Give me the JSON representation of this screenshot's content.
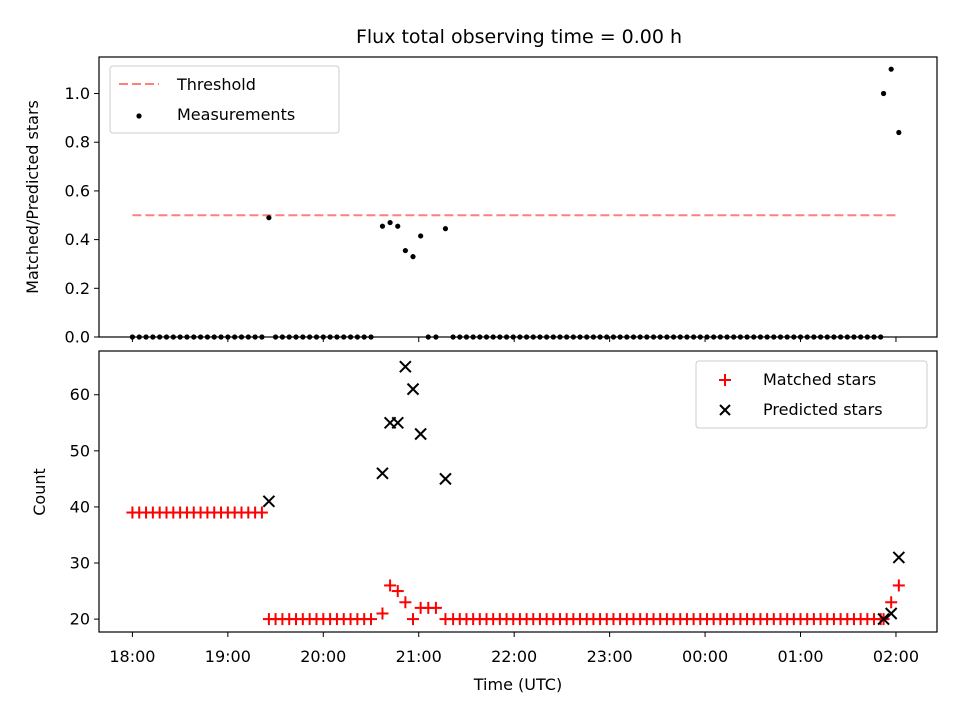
{
  "figure_title": "Flux total observing time = 0.00 h",
  "xlabel": "Time (UTC)",
  "x_ticks": [
    "18:00",
    "19:00",
    "20:00",
    "21:00",
    "22:00",
    "23:00",
    "00:00",
    "01:00",
    "02:00"
  ],
  "chart_data": [
    {
      "type": "scatter",
      "panel": "top",
      "title": "Flux total observing time = 0.00 h",
      "ylabel": "Matched/Predicted stars",
      "xlabel": "Time (UTC)",
      "x_unit": "hours since 18:00 UTC",
      "xlim": [
        -0.35,
        8.43
      ],
      "ylim": [
        0.0,
        1.15
      ],
      "y_ticks": [
        "0.0",
        "0.2",
        "0.4",
        "0.6",
        "0.8",
        "1.0"
      ],
      "legend": {
        "position": "top-left",
        "entries": [
          "Threshold",
          "Measurements"
        ]
      },
      "threshold": {
        "name": "Threshold",
        "value": 0.5,
        "x_range": [
          0.0,
          8.0
        ],
        "color": "#ff7f7f",
        "style": "dashed"
      },
      "series": [
        {
          "name": "Measurements",
          "color": "#000000",
          "marker": "dot",
          "points": [
            [
              0.0,
              0
            ],
            [
              0.0714,
              0
            ],
            [
              0.1429,
              0
            ],
            [
              0.2143,
              0
            ],
            [
              0.2857,
              0
            ],
            [
              0.3571,
              0
            ],
            [
              0.4286,
              0
            ],
            [
              0.5,
              0
            ],
            [
              0.5714,
              0
            ],
            [
              0.6429,
              0
            ],
            [
              0.7143,
              0
            ],
            [
              0.7857,
              0
            ],
            [
              0.8571,
              0
            ],
            [
              0.9286,
              0
            ],
            [
              1.0,
              0
            ],
            [
              1.0714,
              0
            ],
            [
              1.1429,
              0
            ],
            [
              1.2143,
              0
            ],
            [
              1.2857,
              0
            ],
            [
              1.3571,
              0
            ],
            [
              1.43,
              0.49
            ],
            [
              1.5,
              0
            ],
            [
              1.5714,
              0
            ],
            [
              1.6429,
              0
            ],
            [
              1.7143,
              0
            ],
            [
              1.7857,
              0
            ],
            [
              1.8571,
              0
            ],
            [
              1.9286,
              0
            ],
            [
              2.0,
              0
            ],
            [
              2.0714,
              0
            ],
            [
              2.1429,
              0
            ],
            [
              2.2143,
              0
            ],
            [
              2.2857,
              0
            ],
            [
              2.3571,
              0
            ],
            [
              2.4286,
              0
            ],
            [
              2.5,
              0
            ],
            [
              2.62,
              0.455
            ],
            [
              2.7,
              0.47
            ],
            [
              2.78,
              0.455
            ],
            [
              2.86,
              0.355
            ],
            [
              2.94,
              0.33
            ],
            [
              3.02,
              0.415
            ],
            [
              3.1,
              0
            ],
            [
              3.18,
              0
            ],
            [
              3.28,
              0.445
            ],
            [
              3.36,
              0
            ],
            [
              3.43,
              0
            ],
            [
              3.5,
              0
            ],
            [
              3.57,
              0
            ],
            [
              3.64,
              0
            ],
            [
              3.71,
              0
            ],
            [
              3.78,
              0
            ],
            [
              3.85,
              0
            ],
            [
              3.92,
              0
            ],
            [
              3.99,
              0
            ],
            [
              4.06,
              0
            ],
            [
              4.13,
              0
            ],
            [
              4.2,
              0
            ],
            [
              4.27,
              0
            ],
            [
              4.34,
              0
            ],
            [
              4.41,
              0
            ],
            [
              4.48,
              0
            ],
            [
              4.55,
              0
            ],
            [
              4.62,
              0
            ],
            [
              4.69,
              0
            ],
            [
              4.76,
              0
            ],
            [
              4.83,
              0
            ],
            [
              4.9,
              0
            ],
            [
              4.97,
              0
            ],
            [
              5.04,
              0
            ],
            [
              5.11,
              0
            ],
            [
              5.18,
              0
            ],
            [
              5.25,
              0
            ],
            [
              5.32,
              0
            ],
            [
              5.39,
              0
            ],
            [
              5.46,
              0
            ],
            [
              5.53,
              0
            ],
            [
              5.6,
              0
            ],
            [
              5.67,
              0
            ],
            [
              5.74,
              0
            ],
            [
              5.81,
              0
            ],
            [
              5.88,
              0
            ],
            [
              5.95,
              0
            ],
            [
              6.02,
              0
            ],
            [
              6.09,
              0
            ],
            [
              6.16,
              0
            ],
            [
              6.23,
              0
            ],
            [
              6.3,
              0
            ],
            [
              6.37,
              0
            ],
            [
              6.44,
              0
            ],
            [
              6.51,
              0
            ],
            [
              6.58,
              0
            ],
            [
              6.65,
              0
            ],
            [
              6.72,
              0
            ],
            [
              6.79,
              0
            ],
            [
              6.86,
              0
            ],
            [
              6.93,
              0
            ],
            [
              7.0,
              0
            ],
            [
              7.07,
              0
            ],
            [
              7.14,
              0
            ],
            [
              7.21,
              0
            ],
            [
              7.28,
              0
            ],
            [
              7.35,
              0
            ],
            [
              7.42,
              0
            ],
            [
              7.49,
              0
            ],
            [
              7.56,
              0
            ],
            [
              7.63,
              0
            ],
            [
              7.7,
              0
            ],
            [
              7.77,
              0
            ],
            [
              7.84,
              0
            ],
            [
              7.87,
              1.0
            ],
            [
              7.95,
              1.1
            ],
            [
              8.03,
              0.84
            ]
          ]
        }
      ]
    },
    {
      "type": "scatter",
      "panel": "bottom",
      "ylabel": "Count",
      "xlabel": "Time (UTC)",
      "x_unit": "hours since 18:00 UTC",
      "xlim": [
        -0.35,
        8.43
      ],
      "ylim": [
        17.7,
        67.8
      ],
      "y_ticks": [
        "20",
        "30",
        "40",
        "50",
        "60"
      ],
      "legend": {
        "position": "top-right",
        "entries": [
          "Matched stars",
          "Predicted stars"
        ]
      },
      "series": [
        {
          "name": "Matched stars",
          "color": "#ff0000",
          "marker": "plus",
          "points": [
            [
              0.0,
              39
            ],
            [
              0.0714,
              39
            ],
            [
              0.1429,
              39
            ],
            [
              0.2143,
              39
            ],
            [
              0.2857,
              39
            ],
            [
              0.3571,
              39
            ],
            [
              0.4286,
              39
            ],
            [
              0.5,
              39
            ],
            [
              0.5714,
              39
            ],
            [
              0.6429,
              39
            ],
            [
              0.7143,
              39
            ],
            [
              0.7857,
              39
            ],
            [
              0.8571,
              39
            ],
            [
              0.9286,
              39
            ],
            [
              1.0,
              39
            ],
            [
              1.0714,
              39
            ],
            [
              1.1429,
              39
            ],
            [
              1.2143,
              39
            ],
            [
              1.2857,
              39
            ],
            [
              1.3571,
              39
            ],
            [
              1.43,
              20
            ],
            [
              1.5,
              20
            ],
            [
              1.5714,
              20
            ],
            [
              1.6429,
              20
            ],
            [
              1.7143,
              20
            ],
            [
              1.7857,
              20
            ],
            [
              1.8571,
              20
            ],
            [
              1.9286,
              20
            ],
            [
              2.0,
              20
            ],
            [
              2.0714,
              20
            ],
            [
              2.1429,
              20
            ],
            [
              2.2143,
              20
            ],
            [
              2.2857,
              20
            ],
            [
              2.3571,
              20
            ],
            [
              2.4286,
              20
            ],
            [
              2.5,
              20
            ],
            [
              2.62,
              21
            ],
            [
              2.7,
              26
            ],
            [
              2.78,
              25
            ],
            [
              2.86,
              23
            ],
            [
              2.94,
              20
            ],
            [
              3.02,
              22
            ],
            [
              3.1,
              22
            ],
            [
              3.18,
              22
            ],
            [
              3.28,
              20
            ],
            [
              3.36,
              20
            ],
            [
              3.43,
              20
            ],
            [
              3.5,
              20
            ],
            [
              3.57,
              20
            ],
            [
              3.64,
              20
            ],
            [
              3.71,
              20
            ],
            [
              3.78,
              20
            ],
            [
              3.85,
              20
            ],
            [
              3.92,
              20
            ],
            [
              3.99,
              20
            ],
            [
              4.06,
              20
            ],
            [
              4.13,
              20
            ],
            [
              4.2,
              20
            ],
            [
              4.27,
              20
            ],
            [
              4.34,
              20
            ],
            [
              4.41,
              20
            ],
            [
              4.48,
              20
            ],
            [
              4.55,
              20
            ],
            [
              4.62,
              20
            ],
            [
              4.69,
              20
            ],
            [
              4.76,
              20
            ],
            [
              4.83,
              20
            ],
            [
              4.9,
              20
            ],
            [
              4.97,
              20
            ],
            [
              5.04,
              20
            ],
            [
              5.11,
              20
            ],
            [
              5.18,
              20
            ],
            [
              5.25,
              20
            ],
            [
              5.32,
              20
            ],
            [
              5.39,
              20
            ],
            [
              5.46,
              20
            ],
            [
              5.53,
              20
            ],
            [
              5.6,
              20
            ],
            [
              5.67,
              20
            ],
            [
              5.74,
              20
            ],
            [
              5.81,
              20
            ],
            [
              5.88,
              20
            ],
            [
              5.95,
              20
            ],
            [
              6.02,
              20
            ],
            [
              6.09,
              20
            ],
            [
              6.16,
              20
            ],
            [
              6.23,
              20
            ],
            [
              6.3,
              20
            ],
            [
              6.37,
              20
            ],
            [
              6.44,
              20
            ],
            [
              6.51,
              20
            ],
            [
              6.58,
              20
            ],
            [
              6.65,
              20
            ],
            [
              6.72,
              20
            ],
            [
              6.79,
              20
            ],
            [
              6.86,
              20
            ],
            [
              6.93,
              20
            ],
            [
              7.0,
              20
            ],
            [
              7.07,
              20
            ],
            [
              7.14,
              20
            ],
            [
              7.21,
              20
            ],
            [
              7.28,
              20
            ],
            [
              7.35,
              20
            ],
            [
              7.42,
              20
            ],
            [
              7.49,
              20
            ],
            [
              7.56,
              20
            ],
            [
              7.63,
              20
            ],
            [
              7.7,
              20
            ],
            [
              7.77,
              20
            ],
            [
              7.84,
              20
            ],
            [
              7.87,
              20
            ],
            [
              7.95,
              23
            ],
            [
              8.03,
              26
            ]
          ]
        },
        {
          "name": "Predicted stars",
          "color": "#000000",
          "marker": "x",
          "points": [
            [
              1.43,
              41
            ],
            [
              2.62,
              46
            ],
            [
              2.7,
              55
            ],
            [
              2.78,
              55
            ],
            [
              2.86,
              65
            ],
            [
              2.94,
              61
            ],
            [
              3.02,
              53
            ],
            [
              3.28,
              45
            ],
            [
              7.87,
              20
            ],
            [
              7.95,
              21
            ],
            [
              8.03,
              31
            ]
          ]
        }
      ]
    }
  ]
}
